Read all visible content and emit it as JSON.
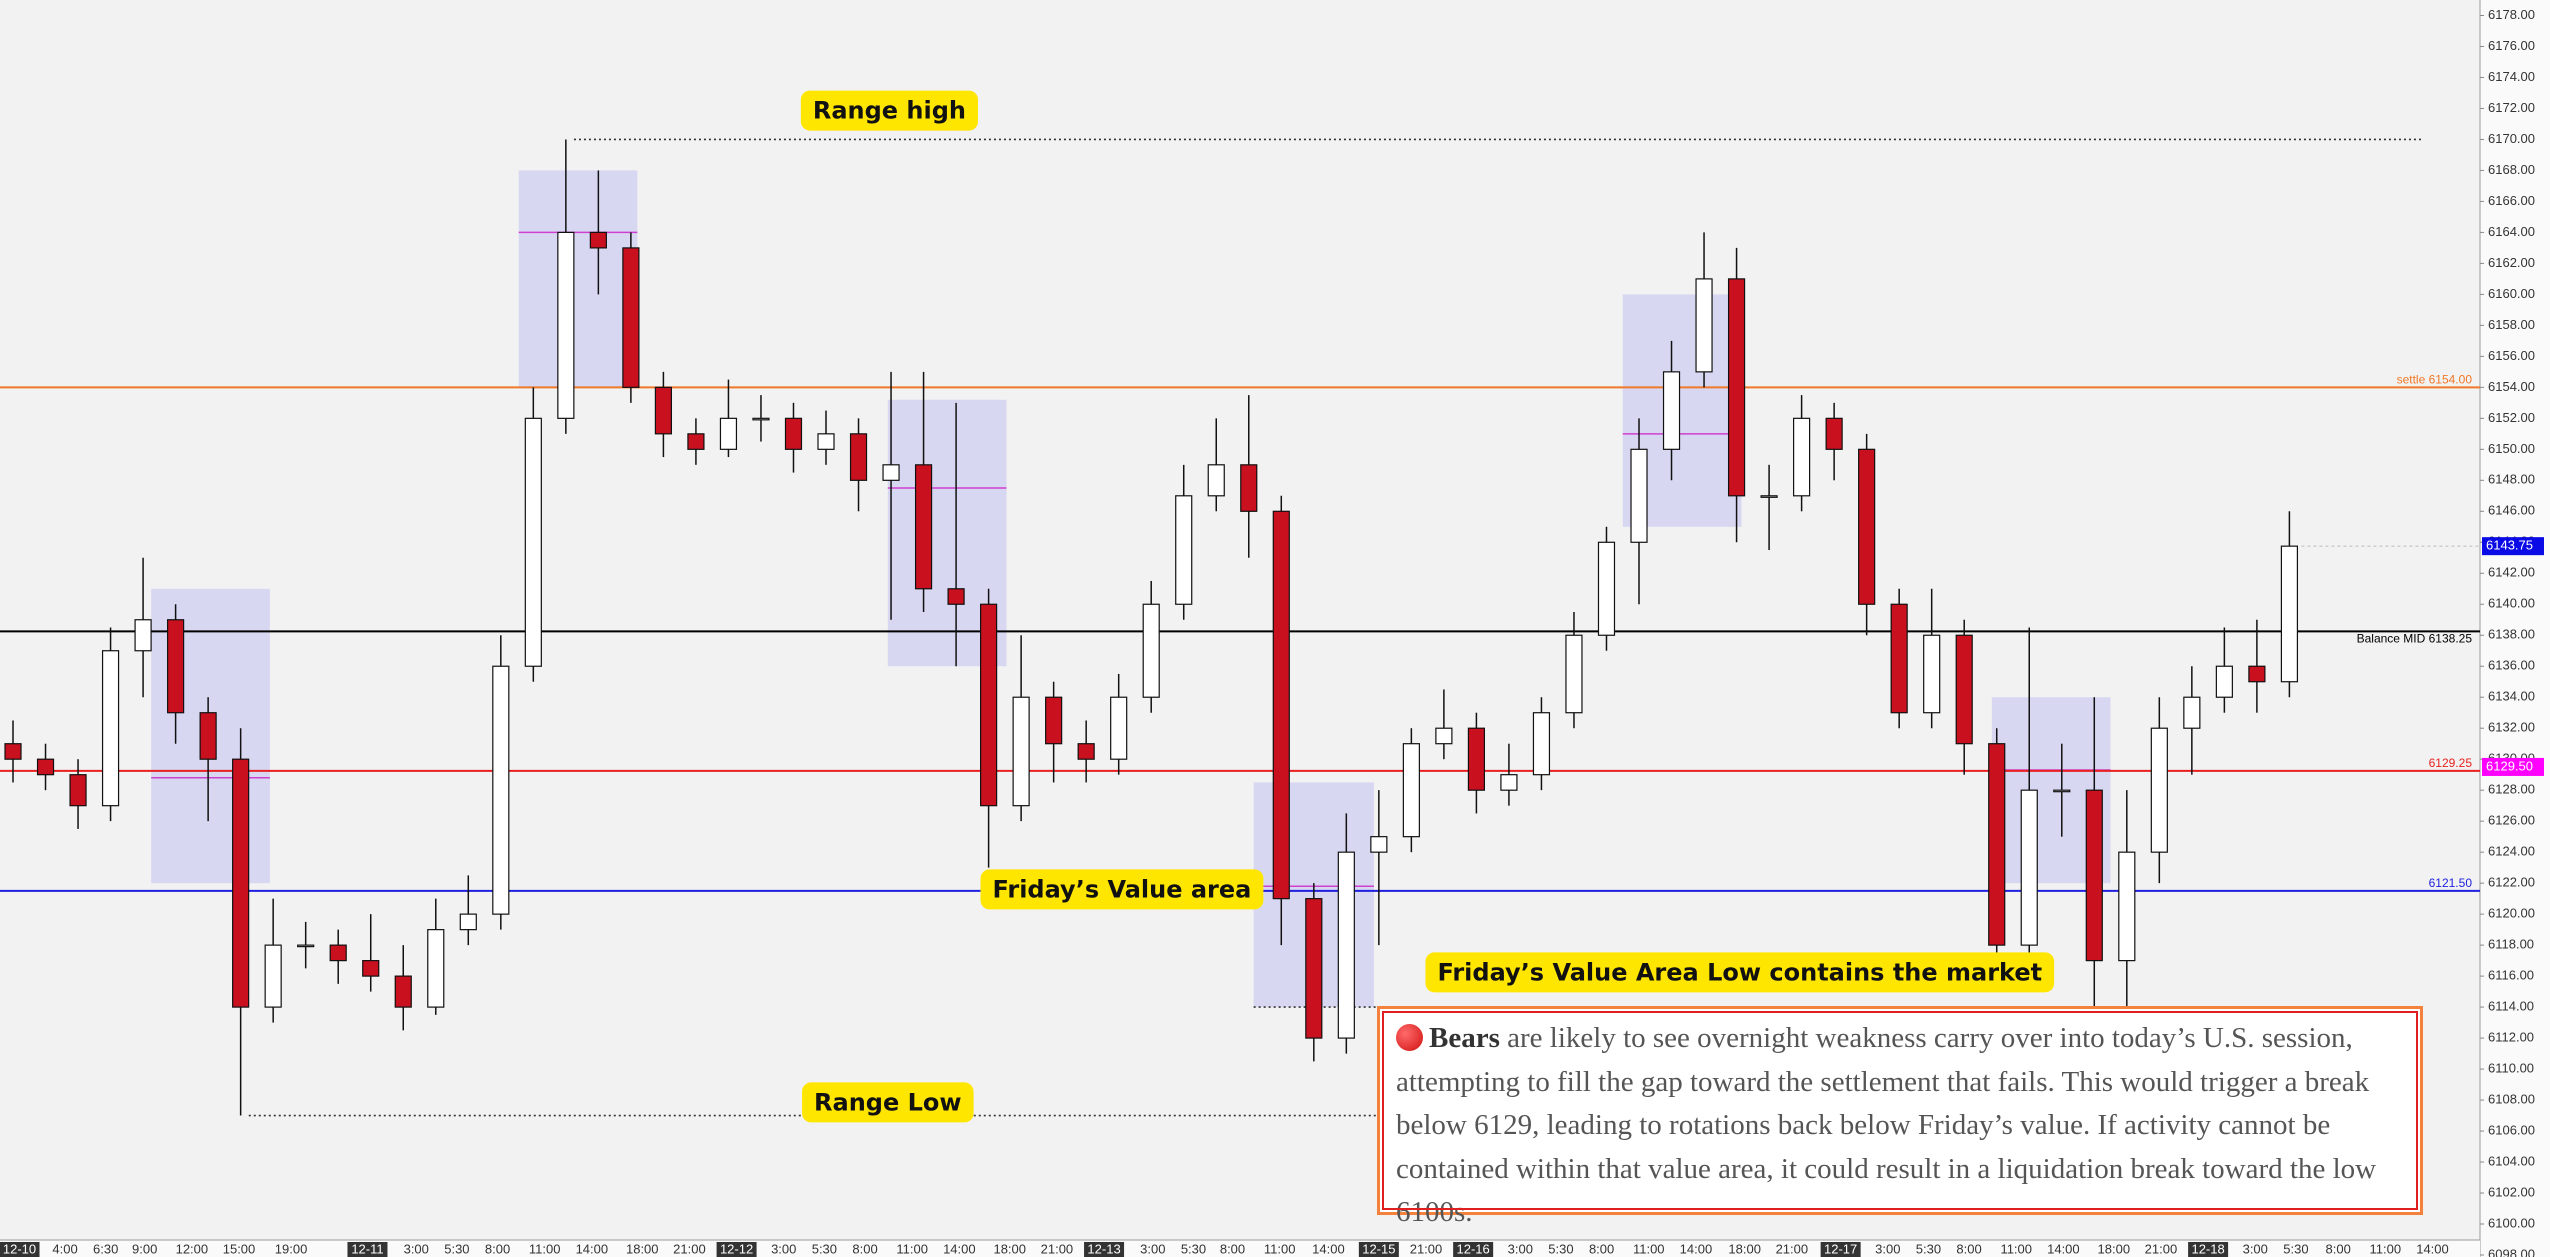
{
  "chart_data": {
    "type": "candlestick",
    "ylim": [
      6098,
      6179
    ],
    "yticks": [
      {
        "value": 6178,
        "label": "6178.00"
      },
      {
        "value": 6176,
        "label": "6176.00"
      },
      {
        "value": 6174,
        "label": "6174.00"
      },
      {
        "value": 6172,
        "label": "6172.00"
      },
      {
        "value": 6170,
        "label": "6170.00"
      },
      {
        "value": 6168,
        "label": "6168.00"
      },
      {
        "value": 6166,
        "label": "6166.00"
      },
      {
        "value": 6164,
        "label": "6164.00"
      },
      {
        "value": 6162,
        "label": "6162.00"
      },
      {
        "value": 6160,
        "label": "6160.00"
      },
      {
        "value": 6158,
        "label": "6158.00"
      },
      {
        "value": 6156,
        "label": "6156.00"
      },
      {
        "value": 6154,
        "label": "6154.00"
      },
      {
        "value": 6152,
        "label": "6152.00"
      },
      {
        "value": 6150,
        "label": "6150.00"
      },
      {
        "value": 6148,
        "label": "6148.00"
      },
      {
        "value": 6146,
        "label": "6146.00"
      },
      {
        "value": 6144,
        "label": "6144.00"
      },
      {
        "value": 6142,
        "label": "6142.00"
      },
      {
        "value": 6140,
        "label": "6140.00"
      },
      {
        "value": 6138,
        "label": "6138.00"
      },
      {
        "value": 6136,
        "label": "6136.00"
      },
      {
        "value": 6134,
        "label": "6134.00"
      },
      {
        "value": 6132,
        "label": "6132.00"
      },
      {
        "value": 6130,
        "label": "6130.00"
      },
      {
        "value": 6128,
        "label": "6128.00"
      },
      {
        "value": 6126,
        "label": "6126.00"
      },
      {
        "value": 6124,
        "label": "6124.00"
      },
      {
        "value": 6122,
        "label": "6122.00"
      },
      {
        "value": 6120,
        "label": "6120.00"
      },
      {
        "value": 6118,
        "label": "6118.00"
      },
      {
        "value": 6116,
        "label": "6116.00"
      },
      {
        "value": 6114,
        "label": "6114.00"
      },
      {
        "value": 6112,
        "label": "6112.00"
      },
      {
        "value": 6110,
        "label": "6110.00"
      },
      {
        "value": 6108,
        "label": "6108.00"
      },
      {
        "value": 6106,
        "label": "6106.00"
      },
      {
        "value": 6104,
        "label": "6104.00"
      },
      {
        "value": 6102,
        "label": "6102.00"
      },
      {
        "value": 6100,
        "label": "6100.00"
      },
      {
        "value": 6098,
        "label": "6098.00"
      }
    ],
    "x_labels": [
      "12-10",
      "4:00",
      "6:30",
      "9:00",
      "12:00",
      "15:00",
      "19:00",
      "12-11",
      "3:00",
      "5:30",
      "8:00",
      "11:00",
      "14:00",
      "18:00",
      "21:00",
      "12-12",
      "3:00",
      "5:30",
      "8:00",
      "11:00",
      "14:00",
      "18:00",
      "21:00",
      "12-13",
      "3:00",
      "5:30",
      "8:00",
      "11:00",
      "14:00",
      "12-15",
      "21:00",
      "12-16",
      "3:00",
      "5:30",
      "8:00",
      "11:00",
      "14:00",
      "18:00",
      "21:00",
      "12-17",
      "3:00",
      "5:30",
      "8:00",
      "11:00",
      "14:00",
      "18:00",
      "21:00",
      "12-18",
      "3:00",
      "5:30",
      "8:00",
      "11:00",
      "14:00"
    ],
    "up_color": "#ffffff",
    "down_color": "#c8101e",
    "open": [
      6131,
      6130,
      6129,
      6127,
      6137,
      6139,
      6133,
      6130,
      6114,
      6118,
      6118,
      6117,
      6116,
      6114,
      6119,
      6120,
      6136,
      6152,
      6164,
      6163,
      6154,
      6151,
      6150,
      6152,
      6152,
      6150,
      6151,
      6148,
      6149,
      6141,
      6140,
      6127,
      6134,
      6131,
      6130,
      6134,
      6140,
      6147,
      6149,
      6146,
      6121,
      6112,
      6124,
      6125,
      6131,
      6132,
      6128,
      6129,
      6133,
      6138,
      6144,
      6150,
      6155,
      6161,
      6147,
      6147,
      6152,
      6150,
      6140,
      6133,
      6138,
      6131,
      6118,
      6128,
      6128,
      6117,
      6124,
      6132,
      6134,
      6136,
      6135
    ],
    "high": [
      6132.5,
      6131,
      6130,
      6138.5,
      6143,
      6140,
      6134,
      6132,
      6121,
      6119.5,
      6119,
      6120,
      6118,
      6121,
      6122.5,
      6138,
      6154,
      6170,
      6168,
      6164,
      6155,
      6152,
      6154.5,
      6153.5,
      6153,
      6152.5,
      6152,
      6155,
      6155,
      6153,
      6141,
      6138,
      6135,
      6132.5,
      6135.5,
      6141.5,
      6149,
      6152,
      6153.5,
      6147,
      6122,
      6126.5,
      6128,
      6132,
      6134.5,
      6133,
      6131,
      6134,
      6139.5,
      6145,
      6152,
      6157,
      6164,
      6163,
      6149,
      6153.5,
      6153,
      6151,
      6141,
      6141,
      6139,
      6132,
      6138.5,
      6131,
      6134,
      6128,
      6134,
      6136,
      6138.5,
      6139,
      6146
    ],
    "low": [
      6128.5,
      6128,
      6125.5,
      6126,
      6134,
      6131,
      6126,
      6107,
      6113,
      6116.5,
      6115.5,
      6115,
      6112.5,
      6113.5,
      6118,
      6119,
      6135,
      6151,
      6160,
      6153,
      6149.5,
      6149,
      6149.5,
      6150.5,
      6148.5,
      6149,
      6146,
      6139,
      6139.5,
      6136,
      6123,
      6126,
      6128.5,
      6128.5,
      6129,
      6133,
      6139,
      6146,
      6143,
      6118,
      6110.5,
      6111,
      6118,
      6124,
      6130,
      6126.5,
      6127,
      6128,
      6132,
      6137,
      6140,
      6148,
      6154,
      6144,
      6143.5,
      6146,
      6148,
      6138,
      6132,
      6132,
      6129,
      6117,
      6117,
      6125,
      6114,
      6113.5,
      6122,
      6129,
      6133,
      6133,
      6134
    ],
    "close": [
      6130,
      6129,
      6127,
      6137,
      6139,
      6133,
      6130,
      6114,
      6118,
      6118,
      6117,
      6116,
      6114,
      6119,
      6120,
      6136,
      6152,
      6164,
      6163,
      6154,
      6151,
      6150,
      6152,
      6152,
      6150,
      6151,
      6148,
      6149,
      6141,
      6140,
      6127,
      6134,
      6131,
      6130,
      6134,
      6140,
      6147,
      6149,
      6146,
      6121,
      6112,
      6124,
      6125,
      6131,
      6132,
      6128,
      6129,
      6133,
      6138,
      6144,
      6150,
      6155,
      6161,
      6147,
      6147,
      6152,
      6150,
      6140,
      6133,
      6138,
      6131,
      6118,
      6128,
      6128,
      6117,
      6124,
      6132,
      6134,
      6136,
      6135,
      6143.75
    ],
    "zones": [
      {
        "top": 6141,
        "bottom": 6122,
        "poc": 6128.8
      },
      {
        "top": 6168,
        "bottom": 6154,
        "poc": 6164
      },
      {
        "top": 6153.2,
        "bottom": 6136,
        "poc": 6147.5
      },
      {
        "top": 6128.5,
        "bottom": 6114,
        "poc": 6121.8
      },
      {
        "top": 6160,
        "bottom": 6145,
        "poc": 6151
      },
      {
        "top": 6134,
        "bottom": 6122,
        "poc": 6129.3
      }
    ],
    "lines": [
      {
        "value": 6170,
        "color": "#333333",
        "style": "dotted"
      },
      {
        "value": 6107,
        "color": "#333333",
        "style": "dotted"
      },
      {
        "value": 6114,
        "color": "#333333",
        "style": "dotted"
      },
      {
        "value": 6154,
        "color": "#f07828",
        "style": "solid",
        "label": "settle  6154.00"
      },
      {
        "value": 6138.25,
        "color": "#000000",
        "style": "solid",
        "label": "Balance MID  6138.25"
      },
      {
        "value": 6129.25,
        "color": "#e82020",
        "style": "solid",
        "label": "6129.25"
      },
      {
        "value": 6121.5,
        "color": "#2020e0",
        "style": "solid",
        "label": "6121.50"
      }
    ],
    "price_markers": [
      {
        "value": 6143.75,
        "label": "6143.75",
        "color": "#0a0ae6"
      },
      {
        "value": 6129.5,
        "label": "6129.50",
        "color": "#ff00ff"
      }
    ],
    "annotations": [
      "Range high",
      "Range Low",
      "Friday’s Value area",
      "Friday’s Value Area Low contains the market"
    ],
    "note": {
      "bold": "Bears",
      "text": "are likely to see overnight weakness carry over into today’s U.S. session, attempting to fill the gap toward the settlement that fails. This would trigger a break below 6129, leading to rotations back below Friday’s value. If activity cannot be contained within that value area, it could result in a liquidation break toward the low 6100s."
    }
  }
}
